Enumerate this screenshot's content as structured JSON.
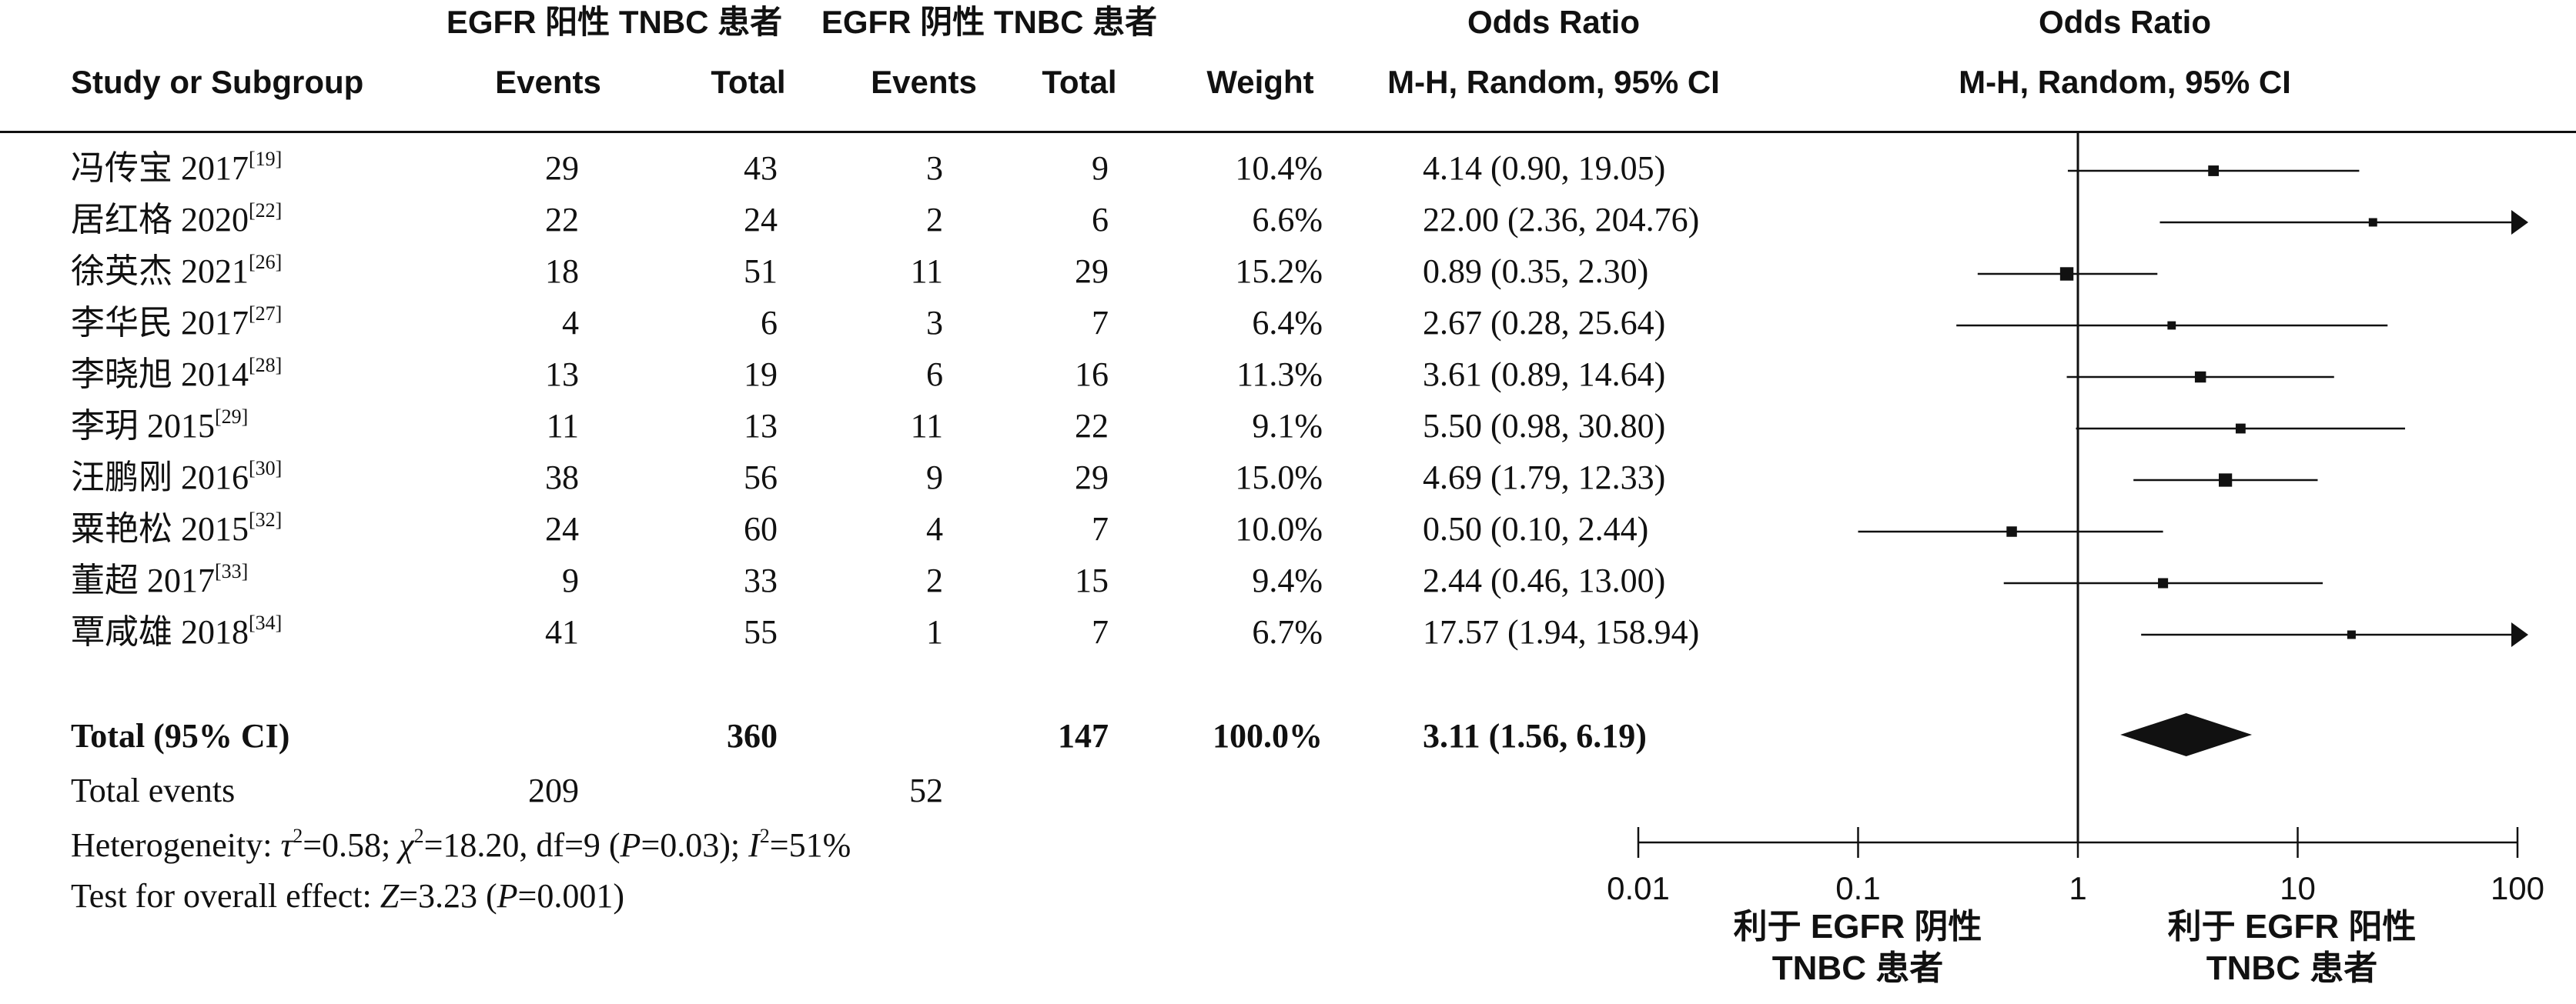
{
  "headers": {
    "group_pos": "EGFR 阳性 TNBC 患者",
    "group_neg": "EGFR 阴性 TNBC 患者",
    "or_top": "Odds Ratio",
    "or_plot_top": "Odds Ratio",
    "study": "Study or Subgroup",
    "events_pos": "Events",
    "total_pos": "Total",
    "events_neg": "Events",
    "total_neg": "Total",
    "weight": "Weight",
    "or_method": "M-H, Random, 95% CI",
    "or_plot_method": "M-H, Random, 95% CI"
  },
  "rows": [
    {
      "study": "冯传宝 2017",
      "ref": "[19]",
      "e1": "29",
      "t1": "43",
      "e2": "3",
      "t2": "9",
      "weight": "10.4%",
      "ci_text": "4.14 (0.90, 19.05)"
    },
    {
      "study": "居红格 2020",
      "ref": "[22]",
      "e1": "22",
      "t1": "24",
      "e2": "2",
      "t2": "6",
      "weight": "6.6%",
      "ci_text": "22.00 (2.36, 204.76)"
    },
    {
      "study": "徐英杰 2021",
      "ref": "[26]",
      "e1": "18",
      "t1": "51",
      "e2": "11",
      "t2": "29",
      "weight": "15.2%",
      "ci_text": "0.89 (0.35, 2.30)"
    },
    {
      "study": "李华民 2017",
      "ref": "[27]",
      "e1": "4",
      "t1": "6",
      "e2": "3",
      "t2": "7",
      "weight": "6.4%",
      "ci_text": "2.67 (0.28, 25.64)"
    },
    {
      "study": "李晓旭 2014",
      "ref": "[28]",
      "e1": "13",
      "t1": "19",
      "e2": "6",
      "t2": "16",
      "weight": "11.3%",
      "ci_text": "3.61 (0.89, 14.64)"
    },
    {
      "study": "李玥 2015",
      "ref": "[29]",
      "e1": "11",
      "t1": "13",
      "e2": "11",
      "t2": "22",
      "weight": "9.1%",
      "ci_text": "5.50 (0.98, 30.80)"
    },
    {
      "study": "汪鹏刚 2016",
      "ref": "[30]",
      "e1": "38",
      "t1": "56",
      "e2": "9",
      "t2": "29",
      "weight": "15.0%",
      "ci_text": "4.69 (1.79, 12.33)"
    },
    {
      "study": "粟艳松 2015",
      "ref": "[32]",
      "e1": "24",
      "t1": "60",
      "e2": "4",
      "t2": "7",
      "weight": "10.0%",
      "ci_text": "0.50 (0.10, 2.44)"
    },
    {
      "study": "董超 2017",
      "ref": "[33]",
      "e1": "9",
      "t1": "33",
      "e2": "2",
      "t2": "15",
      "weight": "9.4%",
      "ci_text": "2.44 (0.46, 13.00)"
    },
    {
      "study": "覃咸雄 2018",
      "ref": "[34]",
      "e1": "41",
      "t1": "55",
      "e2": "1",
      "t2": "7",
      "weight": "6.7%",
      "ci_text": "17.57 (1.94, 158.94)"
    }
  ],
  "total": {
    "label": "Total (95% CI)",
    "t1": "360",
    "t2": "147",
    "weight": "100.0%",
    "ci_text": "3.11 (1.56, 6.19)"
  },
  "events": {
    "label": "Total events",
    "e1": "209",
    "e2": "52"
  },
  "heterogeneity": {
    "prefix": "Heterogeneity: ",
    "tau_sym": "τ",
    "tau_val": "=0.58; ",
    "chi_sym": "χ",
    "chi_val": "=18.20, df=9 (",
    "p_sym": "P",
    "p_val": "=0.03); ",
    "i_sym": "I",
    "i_val": "=51%"
  },
  "overall": {
    "prefix": "Test for overall effect: ",
    "z_sym": "Z",
    "z_val": "=3.23 (",
    "p_sym": "P",
    "p_val": "=0.001)"
  },
  "axis": {
    "tick_labels": [
      "0.01",
      "0.1",
      "1",
      "10",
      "100"
    ],
    "left_label_1": "利于 EGFR 阴性",
    "left_label_2": "TNBC 患者",
    "right_label_1": "利于 EGFR 阳性",
    "right_label_2": "TNBC 患者"
  },
  "colors": {
    "ink": "#111111",
    "background": "#ffffff"
  },
  "chart_data": {
    "type": "forest",
    "scale": "log",
    "xlim": [
      0.01,
      100
    ],
    "ticks": [
      0.01,
      0.1,
      1,
      10,
      100
    ],
    "reference_line": 1,
    "studies": [
      {
        "or": 4.14,
        "lo": 0.9,
        "hi": 19.05,
        "weight": 10.4
      },
      {
        "or": 22.0,
        "lo": 2.36,
        "hi": 204.76,
        "weight": 6.6
      },
      {
        "or": 0.89,
        "lo": 0.35,
        "hi": 2.3,
        "weight": 15.2
      },
      {
        "or": 2.67,
        "lo": 0.28,
        "hi": 25.64,
        "weight": 6.4
      },
      {
        "or": 3.61,
        "lo": 0.89,
        "hi": 14.64,
        "weight": 11.3
      },
      {
        "or": 5.5,
        "lo": 0.98,
        "hi": 30.8,
        "weight": 9.1
      },
      {
        "or": 4.69,
        "lo": 1.79,
        "hi": 12.33,
        "weight": 15.0
      },
      {
        "or": 0.5,
        "lo": 0.1,
        "hi": 2.44,
        "weight": 10.0
      },
      {
        "or": 2.44,
        "lo": 0.46,
        "hi": 13.0,
        "weight": 9.4
      },
      {
        "or": 17.57,
        "lo": 1.94,
        "hi": 158.94,
        "weight": 6.7
      }
    ],
    "pooled": {
      "or": 3.11,
      "lo": 1.56,
      "hi": 6.19
    }
  }
}
